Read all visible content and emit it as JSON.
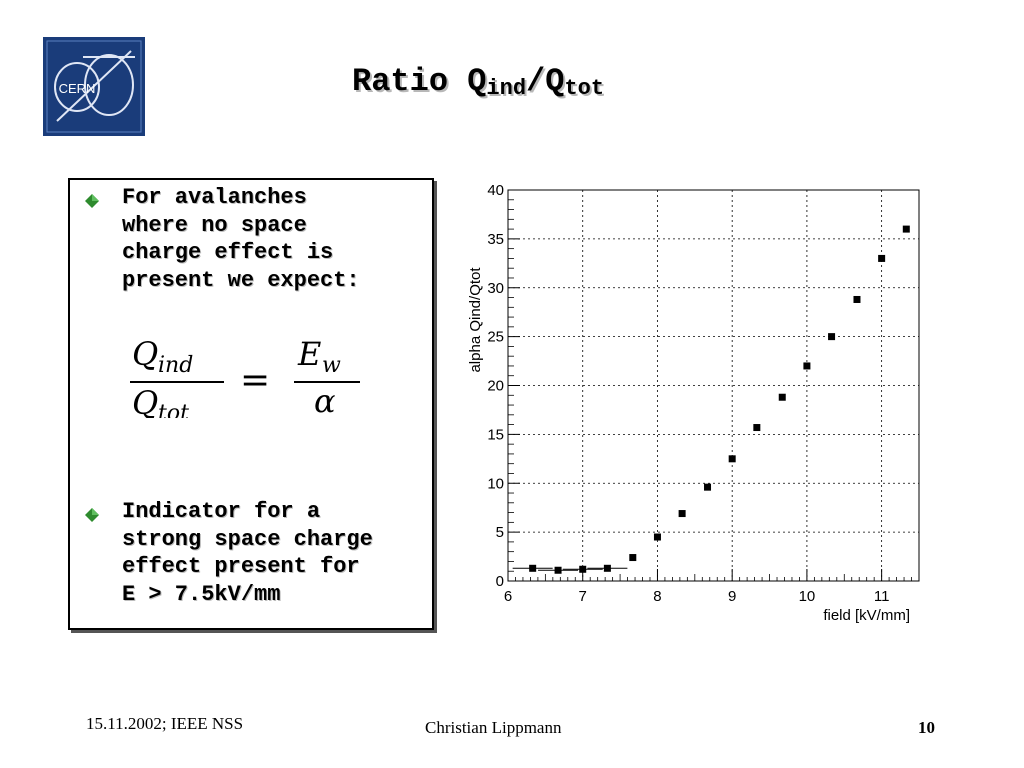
{
  "title": {
    "main": "Ratio Q",
    "sub1": "ind",
    "slash": "/Q",
    "sub2": "tot"
  },
  "logo": {
    "text": "CERN"
  },
  "bullets": [
    {
      "icon": "green-diamond-icon",
      "lines": [
        "For avalanches",
        "where no space",
        "charge effect is",
        "present we expect:"
      ]
    },
    {
      "icon": "green-diamond-icon",
      "lines": [
        "Indicator for a",
        "strong space charge",
        "effect present for",
        "E > 7.5kV/mm"
      ]
    }
  ],
  "formula": {
    "lhs_num": "Q",
    "lhs_num_sub": "ind",
    "lhs_den": "Q",
    "lhs_den_sub": "tot",
    "eq": "=",
    "rhs_num": "E",
    "rhs_num_sub": "w",
    "rhs_den": "α"
  },
  "footer": {
    "left": "15.11.2002; IEEE NSS",
    "center": "Christian Lippmann",
    "right": "10"
  },
  "colors": {
    "bullet": "#2e8b2e",
    "logo_bg": "#1a3c7a"
  },
  "chart_data": {
    "type": "scatter",
    "xlabel": "field [kV/mm]",
    "ylabel": "alpha Qind/Qtot",
    "xlim": [
      6,
      11.5
    ],
    "ylim": [
      0,
      40
    ],
    "xticks": [
      6,
      7,
      8,
      9,
      10,
      11
    ],
    "yticks": [
      0,
      5,
      10,
      15,
      20,
      25,
      30,
      35,
      40
    ],
    "grid": true,
    "points": [
      {
        "x": 6.33,
        "y": 1.3
      },
      {
        "x": 6.67,
        "y": 1.1
      },
      {
        "x": 7.0,
        "y": 1.2
      },
      {
        "x": 7.33,
        "y": 1.3
      },
      {
        "x": 7.67,
        "y": 2.4
      },
      {
        "x": 8.0,
        "y": 4.5
      },
      {
        "x": 8.33,
        "y": 6.9
      },
      {
        "x": 8.67,
        "y": 9.6
      },
      {
        "x": 9.0,
        "y": 12.5
      },
      {
        "x": 9.33,
        "y": 15.7
      },
      {
        "x": 9.67,
        "y": 18.8
      },
      {
        "x": 10.0,
        "y": 22.0
      },
      {
        "x": 10.33,
        "y": 25.0
      },
      {
        "x": 10.67,
        "y": 28.8
      },
      {
        "x": 11.0,
        "y": 33.0
      },
      {
        "x": 11.33,
        "y": 36.0
      }
    ]
  }
}
